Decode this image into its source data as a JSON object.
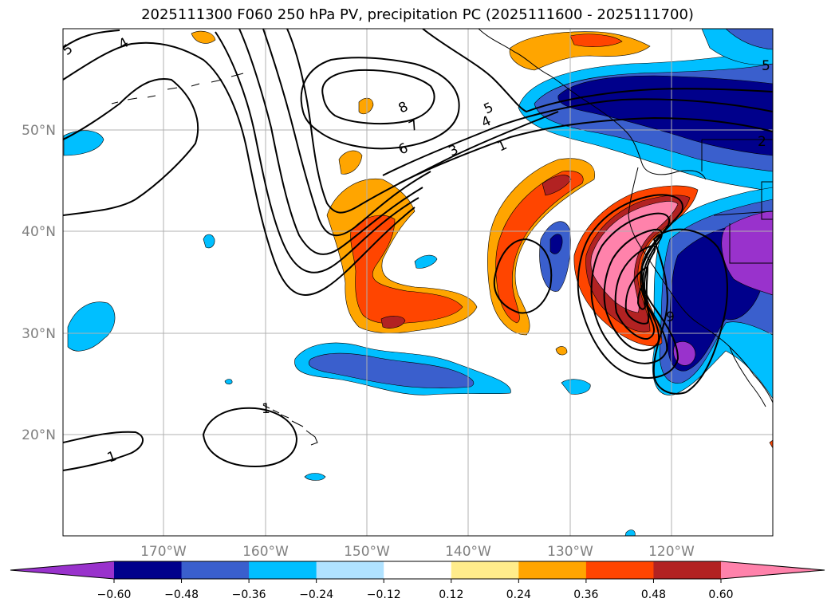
{
  "title": "2025111300 F060 250 hPa PV, precipitation PC (2025111600 - 2025111700)",
  "lat_labels": [
    "50°N",
    "40°N",
    "30°N",
    "20°N"
  ],
  "lon_labels": [
    "170°W",
    "160°W",
    "150°W",
    "140°W",
    "130°W",
    "120°W"
  ],
  "contour_labels": [
    "5",
    "4",
    "8",
    "7",
    "6",
    "5",
    "4",
    "3",
    "1",
    "1",
    "1",
    "2",
    "5",
    "9"
  ],
  "colorbar": {
    "ticks": [
      "−0.60",
      "−0.48",
      "−0.36",
      "−0.24",
      "−0.12",
      "0.12",
      "0.24",
      "0.36",
      "0.48",
      "0.60"
    ],
    "colors": [
      "#9932cc",
      "#00008b",
      "#3a5fcd",
      "#00bfff",
      "#b0e2ff",
      "#ffffff",
      "#ffec8b",
      "#ffa500",
      "#ff4500",
      "#b22222",
      "#ff82ab"
    ]
  },
  "colors": {
    "neg_strong": "#9932cc",
    "neg_dark": "#00008b",
    "neg_mid": "#3a5fcd",
    "neg_light": "#00bfff",
    "neg_pale": "#b0e2ff",
    "pos_pale": "#ffec8b",
    "pos_orange": "#ffa500",
    "pos_red": "#ff4500",
    "pos_dark": "#b22222",
    "pos_pink": "#ff82ab"
  }
}
